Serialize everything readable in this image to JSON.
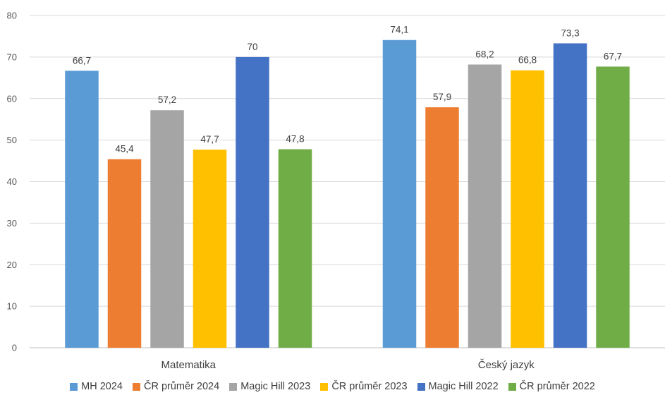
{
  "chart_data": {
    "type": "bar",
    "title": "",
    "xlabel": "",
    "ylabel": "",
    "ylim": [
      0,
      80
    ],
    "yticks": [
      0,
      10,
      20,
      30,
      40,
      50,
      60,
      70,
      80
    ],
    "grid": true,
    "legend_position": "bottom",
    "categories": [
      "Matematika",
      "Český jazyk"
    ],
    "series": [
      {
        "name": "MH 2024",
        "color": "#5B9BD5",
        "values": [
          66.7,
          74.1
        ],
        "labels": [
          "66,7",
          "74,1"
        ]
      },
      {
        "name": "ČR průměr 2024",
        "color": "#ED7D31",
        "values": [
          45.4,
          57.9
        ],
        "labels": [
          "45,4",
          "57,9"
        ]
      },
      {
        "name": "Magic Hill 2023",
        "color": "#A5A5A5",
        "values": [
          57.2,
          68.2
        ],
        "labels": [
          "57,2",
          "68,2"
        ]
      },
      {
        "name": "ČR průměr 2023",
        "color": "#FFC000",
        "values": [
          47.7,
          66.8
        ],
        "labels": [
          "47,7",
          "66,8"
        ]
      },
      {
        "name": "Magic Hill 2022",
        "color": "#4472C4",
        "values": [
          70,
          73.3
        ],
        "labels": [
          "70",
          "73,3"
        ]
      },
      {
        "name": "ČR průměr 2022",
        "color": "#70AD47",
        "values": [
          47.8,
          67.7
        ],
        "labels": [
          "47,8",
          "67,7"
        ]
      }
    ]
  }
}
